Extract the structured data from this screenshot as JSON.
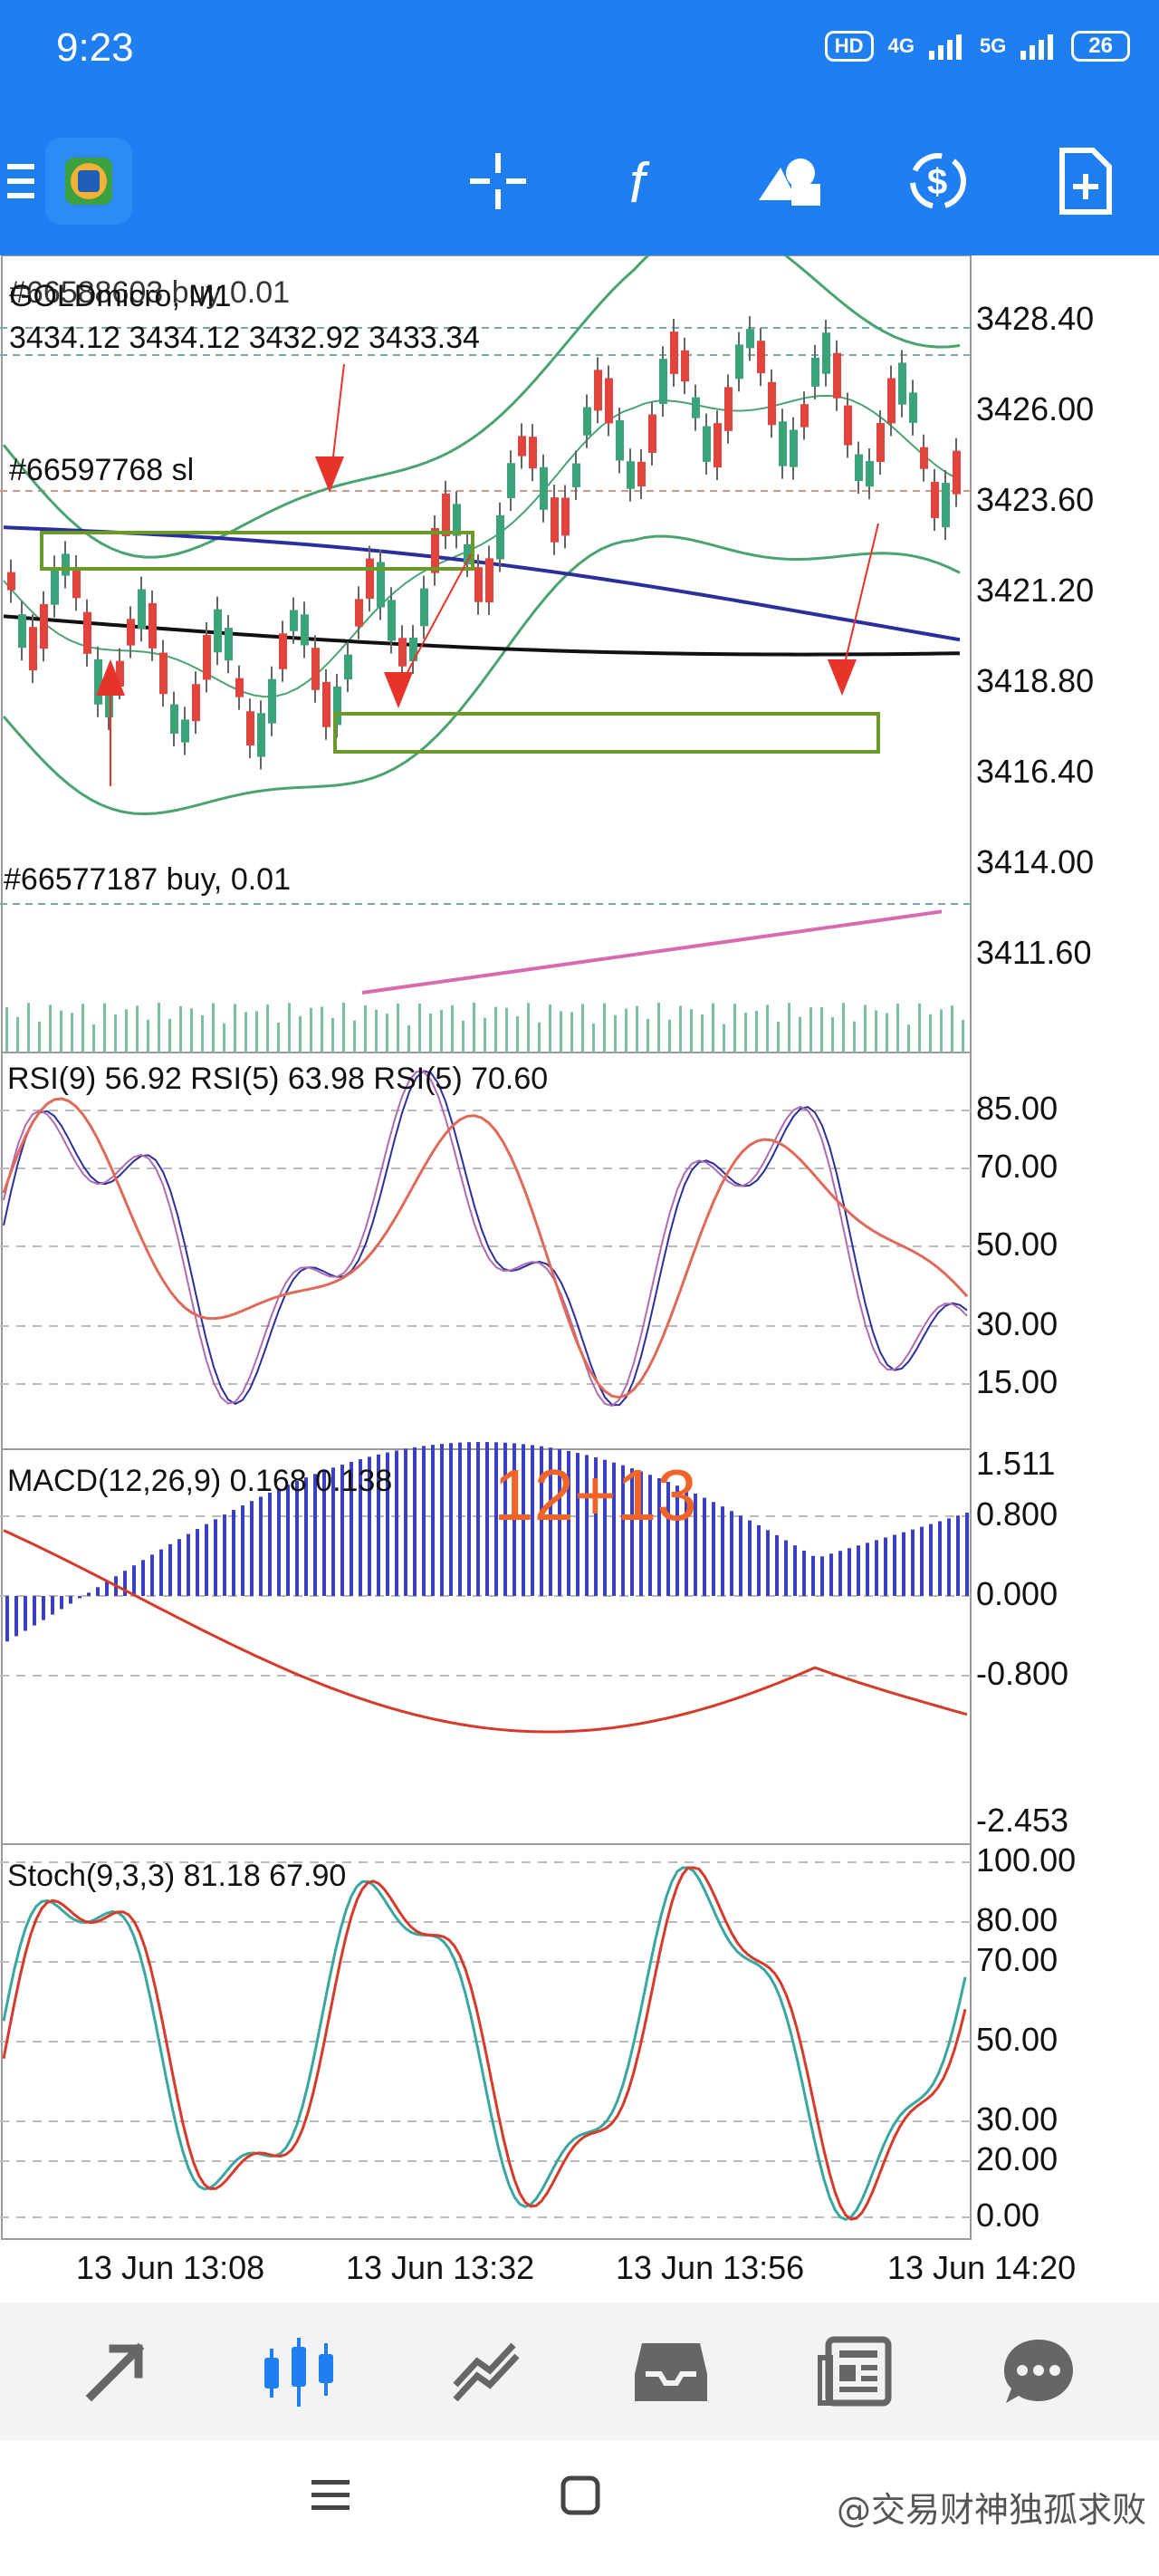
{
  "status_bar": {
    "time": "9:23",
    "hd_label": "HD",
    "net1": "4G",
    "net2": "5G",
    "battery": "26"
  },
  "toolbar": {
    "icons": [
      "menu-icon",
      "metatrader-logo",
      "crosshair-icon",
      "indicators-icon",
      "objects-icon",
      "timeframe-icon",
      "new-order-icon"
    ]
  },
  "main_chart": {
    "symbol": "GOLDmicro, M1",
    "ohlc": "3434.12 3434.12 3432.92 3433.34",
    "order1": "#66588603 buy 0.01",
    "order2": "#66597768 sl",
    "order3": "#66577187 buy, 0.01",
    "price_labels": [
      "3428.40",
      "3426.00",
      "3423.60",
      "3421.20",
      "3418.80",
      "3416.40",
      "3414.00",
      "3411.60"
    ]
  },
  "rsi": {
    "title": "RSI(9) 56.92 RSI(5) 63.98 RSI(5) 70.60",
    "labels": [
      "85.00",
      "70.00",
      "50.00",
      "30.00",
      "15.00"
    ]
  },
  "macd": {
    "title": "MACD(12,26,9) 0.168 0.138",
    "annotation": "12+13",
    "labels": [
      "1.511",
      "0.800",
      "0.000",
      "-0.800",
      "-2.453"
    ]
  },
  "stoch": {
    "title": "Stoch(9,3,3) 81.18 67.90",
    "labels": [
      "100.00",
      "80.00",
      "70.00",
      "50.00",
      "30.00",
      "20.00",
      "0.00"
    ]
  },
  "time_axis": [
    "13 Jun 13:08",
    "13 Jun 13:32",
    "13 Jun 13:56",
    "13 Jun 14:20"
  ],
  "bottom_nav": {
    "items": [
      "Quotes",
      "Chart",
      "Trade",
      "History",
      "News",
      "Messages"
    ]
  },
  "watermark": "@交易财神独孤求败",
  "colors": {
    "accent": "#1f7ff0",
    "bull": "#3aa37a",
    "bear": "#e0443c",
    "ma_blue": "#2b2f9e",
    "ma_black": "#111111",
    "band_green": "#4aa371",
    "annot_red": "#e8332a",
    "macd_orange": "#f0642a"
  }
}
